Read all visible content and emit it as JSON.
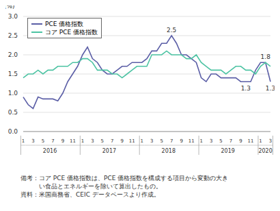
{
  "chart_data": {
    "type": "line",
    "ylabel": "(%)",
    "categories": [
      "1",
      null,
      "3",
      null,
      "5",
      null,
      "7",
      null,
      "9",
      null,
      "11",
      null,
      "1",
      null,
      "3",
      null,
      "5",
      null,
      "7",
      null,
      "9",
      null,
      "11",
      null,
      "1",
      null,
      "3",
      null,
      "5",
      null,
      "7",
      null,
      "9",
      null,
      "11",
      null,
      "1",
      null,
      "3",
      null,
      "5",
      null,
      "7",
      null,
      "9",
      null,
      "11",
      null,
      "1",
      null,
      "3"
    ],
    "year_labels": [
      "2016",
      "2017",
      "2018",
      "2019",
      "2020"
    ],
    "series": [
      {
        "name": "PCE 価格指数",
        "color": "#5b5ea6",
        "values": [
          0.9,
          0.7,
          0.6,
          0.9,
          0.85,
          0.85,
          0.85,
          0.8,
          1.0,
          1.3,
          1.5,
          1.7,
          2.0,
          2.2,
          1.9,
          1.8,
          1.6,
          1.5,
          1.5,
          1.6,
          1.7,
          1.7,
          1.8,
          1.8,
          1.8,
          1.9,
          2.1,
          2.1,
          2.3,
          2.3,
          2.5,
          2.3,
          2.0,
          2.0,
          1.9,
          1.8,
          1.4,
          1.3,
          1.5,
          1.5,
          1.4,
          1.4,
          1.4,
          1.4,
          1.3,
          1.3,
          1.3,
          1.6,
          1.8,
          1.8,
          1.3
        ],
        "value_labels": [
          null,
          null,
          null,
          null,
          null,
          null,
          null,
          null,
          null,
          null,
          null,
          null,
          null,
          null,
          null,
          null,
          null,
          null,
          null,
          null,
          null,
          null,
          null,
          null,
          null,
          null,
          null,
          null,
          null,
          null,
          "2.5",
          null,
          null,
          null,
          null,
          null,
          null,
          null,
          null,
          null,
          null,
          null,
          null,
          null,
          null,
          "1.3",
          null,
          null,
          null,
          "1.8",
          "1.3"
        ]
      },
      {
        "name": "コア PCE 価格指数",
        "color": "#4dc3a3",
        "values": [
          1.4,
          1.5,
          1.5,
          1.6,
          1.5,
          1.6,
          1.6,
          1.7,
          1.7,
          1.7,
          1.8,
          1.8,
          1.9,
          1.9,
          1.8,
          1.6,
          1.6,
          1.6,
          1.5,
          1.5,
          1.4,
          1.5,
          1.6,
          1.7,
          1.7,
          1.7,
          2.0,
          2.0,
          2.0,
          2.1,
          2.0,
          2.0,
          2.0,
          1.9,
          1.9,
          2.0,
          1.8,
          1.7,
          1.6,
          1.6,
          1.6,
          1.5,
          1.6,
          1.7,
          1.7,
          1.6,
          1.6,
          1.5,
          1.7,
          1.8,
          1.7
        ]
      }
    ],
    "ylim": [
      0,
      3
    ],
    "yticks": [
      {
        "value": 0,
        "label": "0.0"
      },
      {
        "value": 0.5,
        "label": "0.5"
      },
      {
        "value": 1,
        "label": "1.0"
      },
      {
        "value": 1.5,
        "label": "1.5"
      },
      {
        "value": 2,
        "label": "2.0"
      },
      {
        "value": 2.5,
        "label": "2.5"
      },
      {
        "value": 3,
        "label": "3.0"
      }
    ],
    "grid": true,
    "legend": "upper left",
    "data_labels": true,
    "notes": [
      "備考：コア PCE 価格指数は、PCE 価格指数を構成する項目から変動の大き",
      "い食品とエネルギーを除いて算出したもの。",
      "資料：米国商務省、CEIC データベースより作成。"
    ]
  }
}
